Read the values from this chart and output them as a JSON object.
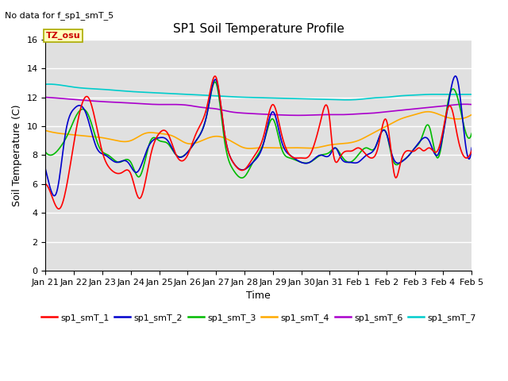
{
  "title": "SP1 Soil Temperature Profile",
  "xlabel": "Time",
  "ylabel": "Soil Temperature (C)",
  "note": "No data for f_sp1_smT_5",
  "tz_label": "TZ_osu",
  "ylim": [
    0,
    16
  ],
  "yticks": [
    0,
    2,
    4,
    6,
    8,
    10,
    12,
    14,
    16
  ],
  "bg_color": "#e0e0e0",
  "legend_colors": {
    "sp1_smT_1": "#ff0000",
    "sp1_smT_2": "#0000cc",
    "sp1_smT_3": "#00bb00",
    "sp1_smT_4": "#ffaa00",
    "sp1_smT_6": "#aa00cc",
    "sp1_smT_7": "#00cccc"
  },
  "xtick_labels": [
    "Jan 21",
    "Jan 22",
    "Jan 23",
    "Jan 24",
    "Jan 25",
    "Jan 26",
    "Jan 27",
    "Jan 28",
    "Jan 29",
    "Jan 30",
    "Jan 31",
    "Feb 1",
    "Feb 2",
    "Feb 3",
    "Feb 4",
    "Feb 5"
  ],
  "num_points": 500
}
